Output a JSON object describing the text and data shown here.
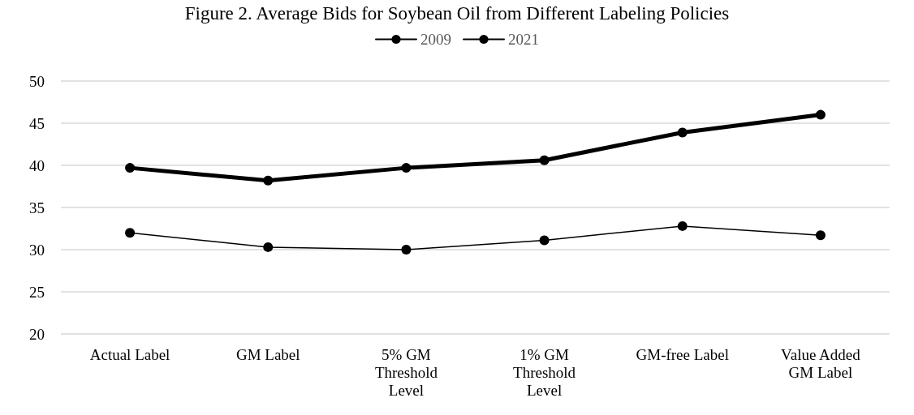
{
  "chart_data": {
    "type": "line",
    "title": "Figure 2. Average Bids for Soybean Oil from Different Labeling Policies",
    "categories": [
      "Actual Label",
      "GM Label",
      "5% GM\nThreshold\nLevel",
      "1% GM\nThreshold\nLevel",
      "GM-free Label",
      "Value Added\nGM Label"
    ],
    "series": [
      {
        "name": "2009",
        "color": "#000000",
        "values": [
          32.0,
          30.3,
          30.0,
          31.1,
          32.8,
          31.7
        ]
      },
      {
        "name": "2021",
        "color": "#000000",
        "values": [
          39.7,
          38.2,
          39.7,
          40.6,
          43.9,
          46.0
        ]
      }
    ],
    "ylim": [
      20,
      50
    ],
    "yticks": [
      20,
      25,
      30,
      35,
      40,
      45,
      50
    ],
    "grid": "y",
    "legend": "top",
    "marker": "circle",
    "line_style": "solid"
  }
}
